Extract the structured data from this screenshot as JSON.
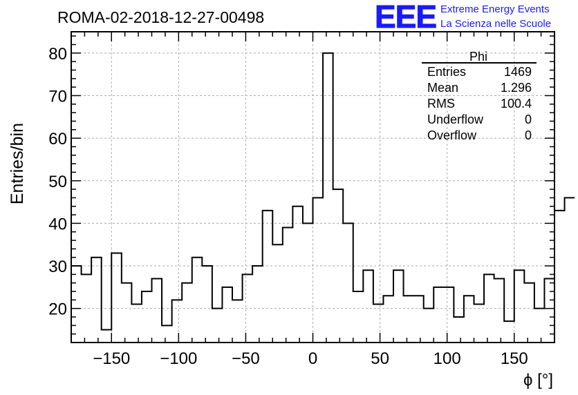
{
  "header": {
    "run_title": "ROMA-02-2018-12-27-00498",
    "logo_text": "EEE",
    "logo_line1": "Extreme Energy Events",
    "logo_line2": "La Scienza nelle Scuole"
  },
  "stats_box": {
    "title": "Phi",
    "rows": [
      {
        "label": "Entries",
        "value": "1469"
      },
      {
        "label": "Mean",
        "value": "1.296"
      },
      {
        "label": "RMS",
        "value": "100.4"
      },
      {
        "label": "Underflow",
        "value": "0"
      },
      {
        "label": "Overflow",
        "value": "0"
      }
    ]
  },
  "colors": {
    "logo": "#1a1aff",
    "line": "#000000",
    "grid": "#aaaaaa"
  },
  "chart_data": {
    "type": "histogram",
    "title": "ROMA-02-2018-12-27-00498",
    "xlabel": "ϕ [°]",
    "ylabel": "Entries/bin",
    "xlim": [
      -180,
      180
    ],
    "ylim": [
      12,
      85
    ],
    "grid": true,
    "bin_width": 7.5,
    "bin_start": -180,
    "values": [
      30,
      28,
      32,
      15,
      33,
      26,
      21,
      24,
      27,
      16,
      22,
      26,
      32,
      30,
      20,
      25,
      22,
      28,
      30,
      43,
      35,
      39,
      44,
      40,
      46,
      80,
      48,
      40,
      24,
      29,
      21,
      23,
      29,
      23,
      23,
      20,
      25,
      25,
      18,
      23,
      21,
      28,
      27,
      17,
      29,
      26,
      20,
      27,
      43,
      46
    ],
    "xticks": [
      -150,
      -100,
      -50,
      0,
      50,
      100,
      150
    ],
    "xtick_labels": [
      "−150",
      "−100",
      "−50",
      "0",
      "50",
      "100",
      "150"
    ],
    "yticks": [
      20,
      30,
      40,
      50,
      60,
      70,
      80
    ],
    "ytick_labels": [
      "20",
      "30",
      "40",
      "50",
      "60",
      "70",
      "80"
    ]
  }
}
